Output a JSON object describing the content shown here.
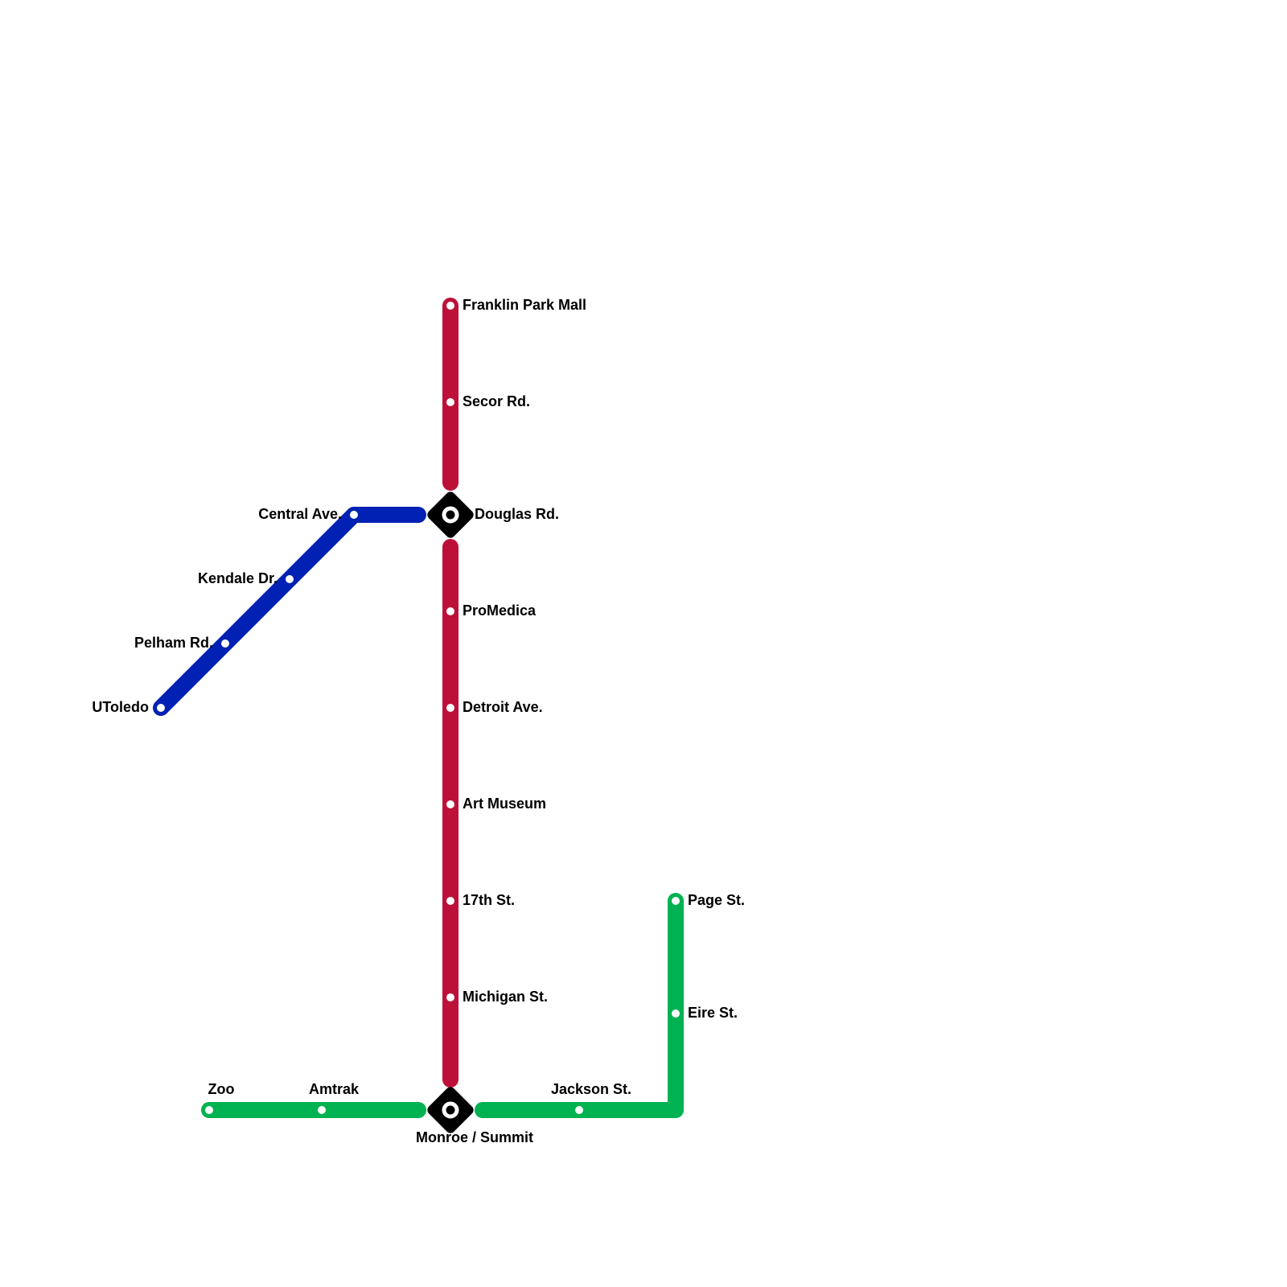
{
  "lines": {
    "red": {
      "color": "#BD1038",
      "stations": [
        "Franklin Park Mall",
        "Secor Rd.",
        "Douglas Rd.",
        "ProMedica",
        "Detroit Ave.",
        "Art Museum",
        "17th St.",
        "Michigan St.",
        "Monroe / Summit"
      ]
    },
    "blue": {
      "color": "#0021B3",
      "stations": [
        "UToledo",
        "Pelham Rd.",
        "Kendale Dr.",
        "Central Ave.",
        "Douglas Rd."
      ]
    },
    "green": {
      "color": "#00B251",
      "stations": [
        "Zoo",
        "Amtrak",
        "Monroe / Summit",
        "Jackson St.",
        "Eire St.",
        "Page St."
      ]
    }
  },
  "interchanges": [
    "Douglas Rd.",
    "Monroe / Summit"
  ]
}
